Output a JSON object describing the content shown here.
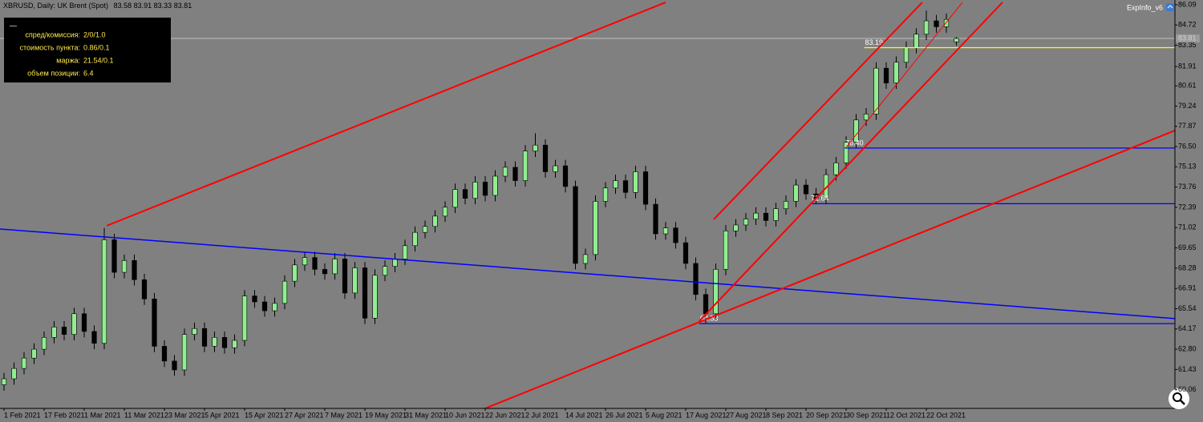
{
  "chart_data": {
    "type": "candlestick",
    "title": "XBRUSD, Daily:  UK Brent (Spot)",
    "background": "#808080",
    "bull_color": "#90ee90",
    "bear_color": "#000000",
    "xlim": [
      -0.8,
      233.6
    ],
    "ylim": [
      58.8,
      86.41
    ],
    "xticks": [
      {
        "value": 0,
        "label": "1 Feb 2021"
      },
      {
        "value": 8,
        "label": "17 Feb 2021"
      },
      {
        "value": 16,
        "label": "1 Mar 2021"
      },
      {
        "value": 24,
        "label": "11 Mar 2021"
      },
      {
        "value": 32,
        "label": "23 Mar 2021"
      },
      {
        "value": 40,
        "label": "5 Apr 2021"
      },
      {
        "value": 48,
        "label": "15 Apr 2021"
      },
      {
        "value": 56,
        "label": "27 Apr 2021"
      },
      {
        "value": 64,
        "label": "7 May 2021"
      },
      {
        "value": 72,
        "label": "19 May 2021"
      },
      {
        "value": 80,
        "label": "31 May 2021"
      },
      {
        "value": 88,
        "label": "10 Jun 2021"
      },
      {
        "value": 96,
        "label": "22 Jun 2021"
      },
      {
        "value": 104,
        "label": "2 Jul 2021"
      },
      {
        "value": 112,
        "label": "14 Jul 2021"
      },
      {
        "value": 120,
        "label": "26 Jul 2021"
      },
      {
        "value": 128,
        "label": "5 Aug 2021"
      },
      {
        "value": 136,
        "label": "17 Aug 2021"
      },
      {
        "value": 144,
        "label": "27 Aug 2021"
      },
      {
        "value": 152,
        "label": "8 Sep 2021"
      },
      {
        "value": 160,
        "label": "20 Sep 2021"
      },
      {
        "value": 168,
        "label": "30 Sep 2021"
      },
      {
        "value": 176,
        "label": "12 Oct 2021"
      },
      {
        "value": 184,
        "label": "22 Oct 2021"
      }
    ],
    "yticks": [
      86.09,
      84.72,
      83.35,
      81.91,
      80.61,
      79.24,
      77.87,
      {
        "value": 76.5,
        "label": "76.50"
      },
      75.13,
      73.76,
      72.39,
      71.02,
      69.65,
      68.28,
      66.91,
      65.54,
      64.17,
      {
        "value": 62.8,
        "label": "62.80"
      },
      61.43,
      60.06
    ],
    "x": [
      0,
      2,
      4,
      6,
      8,
      10,
      12,
      14,
      16,
      18,
      20,
      22,
      24,
      26,
      28,
      30,
      32,
      34,
      36,
      38,
      40,
      42,
      44,
      46,
      48,
      50,
      52,
      54,
      56,
      58,
      60,
      62,
      64,
      66,
      68,
      70,
      72,
      74,
      76,
      78,
      80,
      82,
      84,
      86,
      88,
      90,
      92,
      94,
      96,
      98,
      100,
      102,
      104,
      106,
      108,
      110,
      112,
      114,
      116,
      118,
      120,
      122,
      124,
      126,
      128,
      130,
      132,
      134,
      136,
      138,
      140,
      142,
      144,
      146,
      148,
      150,
      152,
      154,
      156,
      158,
      160,
      162,
      164,
      166,
      168,
      170,
      172,
      174,
      176,
      178,
      180,
      182,
      184,
      186,
      188,
      190
    ],
    "open": [
      60.4,
      60.8,
      61.5,
      62.2,
      62.8,
      63.6,
      64.3,
      63.8,
      65.2,
      64.0,
      63.2,
      70.2,
      68.0,
      68.8,
      67.5,
      66.2,
      63.0,
      62.0,
      61.4,
      63.8,
      64.2,
      63.0,
      63.6,
      62.9,
      63.4,
      66.4,
      66.0,
      65.4,
      65.9,
      67.4,
      68.5,
      69.0,
      68.2,
      67.9,
      68.9,
      66.6,
      68.3,
      64.9,
      67.8,
      68.4,
      68.9,
      69.8,
      70.7,
      71.1,
      71.8,
      72.4,
      73.6,
      73.0,
      74.1,
      73.2,
      74.5,
      75.1,
      74.2,
      76.2,
      76.6,
      74.8,
      75.2,
      73.8,
      68.6,
      69.2,
      72.8,
      73.7,
      74.2,
      73.4,
      74.8,
      72.6,
      70.6,
      71.0,
      70.0,
      68.6,
      66.5,
      65.2,
      68.2,
      70.8,
      71.2,
      71.6,
      72.0,
      71.5,
      72.3,
      72.8,
      73.9,
      73.3,
      73.0,
      74.6,
      75.4,
      76.8,
      78.3,
      78.7,
      81.8,
      80.8,
      82.2,
      83.2,
      84.1,
      85.0,
      84.6,
      83.58
    ],
    "high": [
      61.2,
      61.9,
      62.6,
      63.2,
      64.0,
      64.7,
      64.7,
      65.6,
      65.6,
      64.4,
      71.0,
      70.6,
      69.2,
      69.2,
      67.9,
      66.6,
      63.4,
      62.4,
      64.2,
      64.6,
      64.6,
      64.0,
      64.0,
      63.8,
      66.8,
      66.8,
      66.4,
      66.3,
      67.8,
      68.9,
      69.4,
      69.4,
      68.6,
      69.3,
      69.3,
      68.7,
      68.7,
      68.2,
      68.8,
      69.3,
      70.2,
      71.1,
      71.5,
      72.2,
      72.8,
      74.0,
      74.0,
      74.5,
      74.5,
      74.9,
      75.5,
      75.5,
      76.6,
      77.4,
      77.0,
      75.6,
      75.6,
      74.2,
      69.6,
      73.2,
      74.1,
      74.6,
      74.6,
      75.2,
      75.2,
      73.0,
      71.4,
      71.4,
      70.4,
      69.0,
      66.9,
      68.6,
      71.2,
      71.6,
      72.0,
      72.4,
      72.4,
      72.7,
      73.2,
      74.3,
      74.3,
      73.7,
      75.0,
      75.8,
      77.2,
      78.7,
      79.1,
      82.2,
      82.2,
      82.6,
      83.6,
      84.5,
      85.7,
      85.4,
      85.5,
      83.91
    ],
    "low": [
      60.0,
      60.4,
      61.1,
      61.8,
      62.4,
      63.2,
      63.4,
      63.4,
      63.6,
      62.8,
      62.8,
      67.6,
      67.6,
      67.1,
      65.8,
      62.6,
      61.6,
      61.0,
      61.0,
      63.4,
      62.6,
      62.6,
      62.5,
      62.5,
      63.0,
      65.6,
      65.0,
      65.0,
      65.5,
      67.0,
      68.1,
      67.8,
      67.5,
      67.5,
      66.2,
      66.2,
      64.5,
      64.5,
      67.4,
      68.0,
      68.5,
      69.4,
      70.3,
      70.7,
      71.4,
      72.0,
      72.6,
      72.6,
      72.8,
      72.8,
      74.1,
      73.8,
      73.8,
      75.8,
      74.4,
      74.4,
      73.4,
      68.2,
      68.2,
      68.8,
      72.4,
      73.3,
      73.0,
      73.0,
      72.2,
      70.2,
      70.2,
      69.6,
      68.2,
      66.1,
      64.53,
      64.8,
      67.8,
      70.4,
      70.8,
      71.2,
      71.1,
      71.1,
      71.9,
      72.4,
      72.9,
      72.6,
      72.6,
      74.2,
      75.0,
      76.4,
      77.9,
      78.3,
      80.4,
      80.4,
      81.8,
      82.8,
      83.7,
      84.2,
      84.2,
      83.33
    ],
    "close": [
      60.8,
      61.5,
      62.2,
      62.8,
      63.6,
      64.3,
      63.8,
      65.2,
      64.0,
      63.2,
      70.2,
      68.0,
      68.8,
      67.5,
      66.2,
      63.0,
      62.0,
      61.4,
      63.8,
      64.2,
      63.0,
      63.6,
      62.9,
      63.4,
      66.4,
      66.0,
      65.4,
      65.9,
      67.4,
      68.5,
      69.0,
      68.2,
      67.9,
      68.9,
      66.6,
      68.3,
      64.9,
      67.8,
      68.4,
      68.9,
      69.8,
      70.7,
      71.1,
      71.8,
      72.4,
      73.6,
      73.0,
      74.1,
      73.2,
      74.5,
      75.1,
      74.2,
      76.2,
      76.6,
      74.8,
      75.2,
      73.8,
      68.6,
      69.2,
      72.8,
      73.7,
      74.2,
      73.4,
      74.8,
      72.6,
      70.6,
      71.0,
      70.0,
      68.6,
      66.5,
      65.2,
      68.2,
      70.8,
      71.2,
      71.6,
      72.0,
      71.5,
      72.3,
      72.8,
      73.9,
      73.3,
      73.0,
      74.6,
      75.4,
      76.8,
      78.3,
      78.7,
      81.8,
      80.8,
      82.2,
      83.2,
      84.1,
      85.0,
      84.6,
      85.1,
      83.81
    ],
    "trendlines": [
      {
        "color": "#0000ff",
        "width": 1.5,
        "x": [
          -0.8,
          233.6
        ],
        "y": [
          70.93,
          64.87
        ]
      },
      {
        "color": "#ff0000",
        "width": 2,
        "x": [
          20.5,
          132.0
        ],
        "y": [
          71.15,
          86.25
        ]
      },
      {
        "color": "#ff0000",
        "width": 2,
        "x": [
          96.0,
          233.6
        ],
        "y": [
          58.8,
          77.59
        ]
      },
      {
        "color": "#ff0000",
        "width": 2,
        "x": [
          138.7,
          199.2
        ],
        "y": [
          64.7,
          86.25
        ]
      },
      {
        "color": "#ff0000",
        "width": 2,
        "x": [
          141.6,
          183.2
        ],
        "y": [
          71.58,
          86.25
        ]
      },
      {
        "color": "#ff0000",
        "width": 1,
        "x": [
          168.0,
          191.2
        ],
        "y": [
          76.45,
          86.25
        ]
      }
    ],
    "levels": [
      {
        "price": 83.19,
        "color": "#ffff00",
        "x_start": 171.6
      },
      {
        "price": {
          "value": 76.4,
          "label": "76.40"
        },
        "color": "#0000ff",
        "x_start": 167.7
      },
      {
        "price": 72.64,
        "color": "#0000ff",
        "x_start": 160.8
      },
      {
        "price": 64.53,
        "color": "#0000ff",
        "x_start": 138.7
      }
    ]
  },
  "indicator_label": "ExpInfo_v6",
  "info_panel": {
    "title": "—",
    "rows": [
      [
        "спред/комиссия:",
        "2/0/1.0"
      ],
      [
        "стоимость пункта:",
        "0.86/0.1"
      ],
      [
        "маржа:",
        "21.54/0.1"
      ],
      [
        "объем позиции:",
        "6.4"
      ]
    ]
  }
}
